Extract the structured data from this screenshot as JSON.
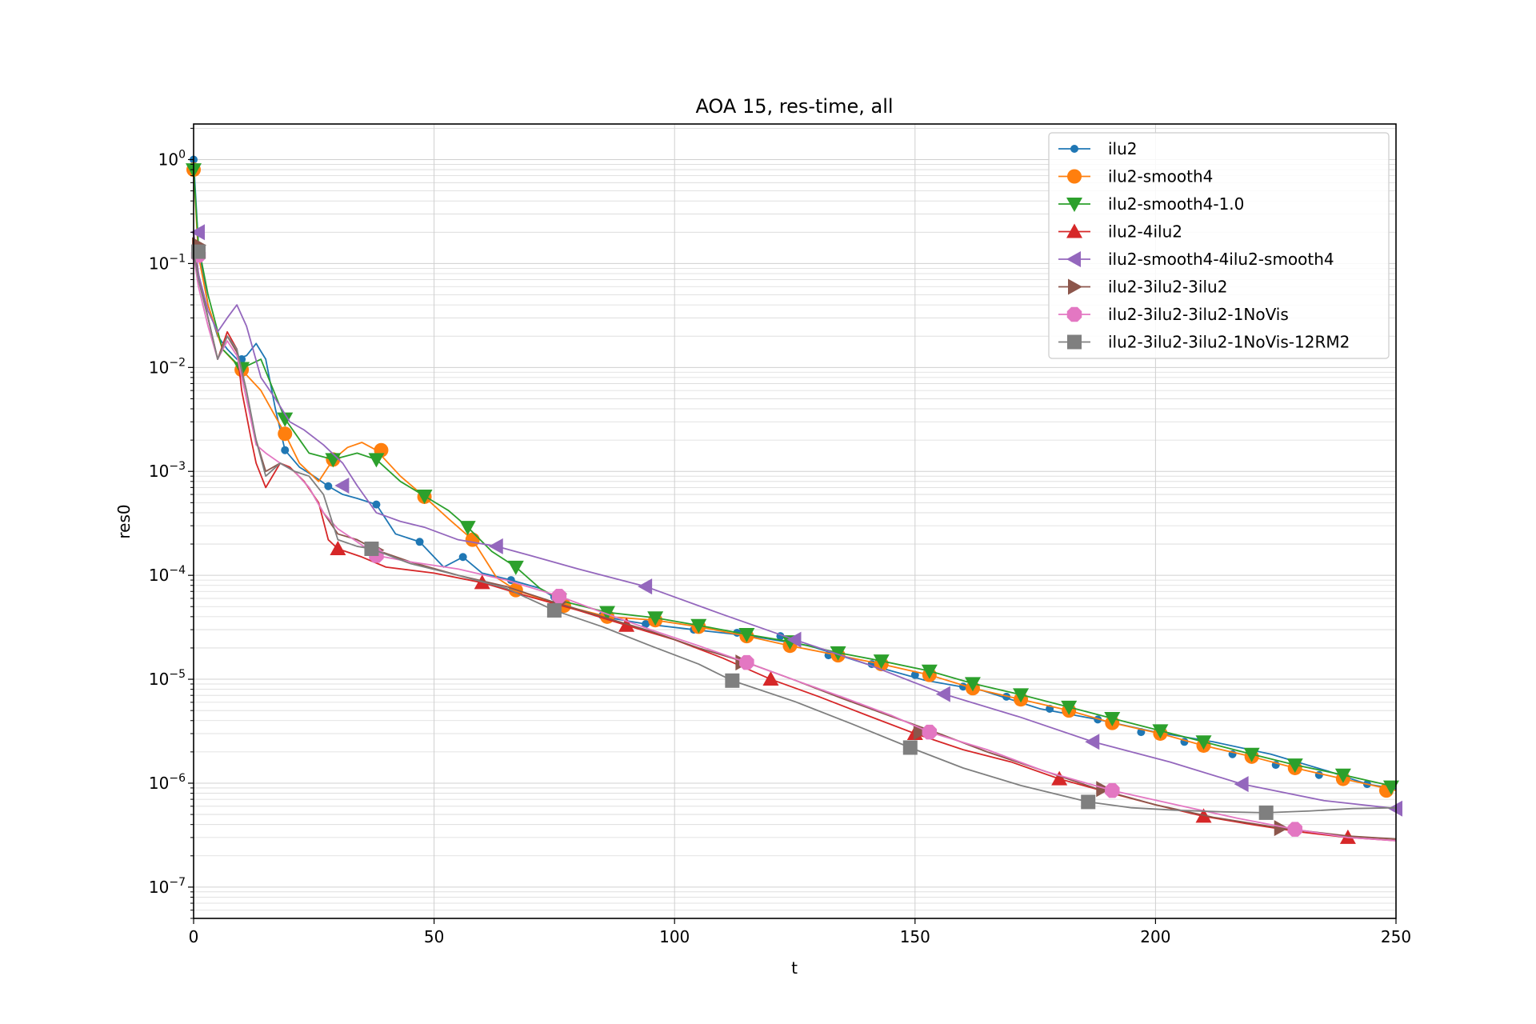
{
  "chart_data": {
    "type": "line",
    "title": "AOA 15, res-time, all",
    "xlabel": "t",
    "ylabel": "res0",
    "xlim": [
      0,
      250
    ],
    "ylim": [
      5e-08,
      2.2
    ],
    "yscale": "log",
    "grid": true,
    "legend_position": "top-right",
    "x_ticks": [
      0,
      50,
      100,
      150,
      200,
      250
    ],
    "x_tick_labels": [
      "0",
      "50",
      "100",
      "150",
      "200",
      "250"
    ],
    "y_ticks": [
      1e-07,
      1e-06,
      1e-05,
      0.0001,
      0.001,
      0.01,
      0.1,
      1
    ],
    "y_tick_labels": [
      {
        "base": "10",
        "exp": "−7"
      },
      {
        "base": "10",
        "exp": "−6"
      },
      {
        "base": "10",
        "exp": "−5"
      },
      {
        "base": "10",
        "exp": "−4"
      },
      {
        "base": "10",
        "exp": "−3"
      },
      {
        "base": "10",
        "exp": "−2"
      },
      {
        "base": "10",
        "exp": "−1"
      },
      {
        "base": "10",
        "exp": "0"
      }
    ],
    "series": [
      {
        "name": "ilu2",
        "color": "#1f77b4",
        "marker": "dot",
        "marker_size": 5,
        "x": [
          0,
          1,
          3,
          5,
          7,
          9,
          11,
          13,
          15,
          17,
          19,
          22,
          25,
          28,
          31,
          34,
          38,
          42,
          47,
          52,
          56,
          60,
          66,
          72,
          78,
          85,
          94,
          104,
          116,
          128,
          140,
          152,
          164,
          176,
          188,
          200,
          212,
          224,
          236,
          244,
          250
        ],
        "y": [
          1.0,
          0.15,
          0.04,
          0.02,
          0.015,
          0.012,
          0.013,
          0.017,
          0.012,
          0.004,
          0.0016,
          0.0011,
          0.0009,
          0.00072,
          0.0006,
          0.00055,
          0.00048,
          0.00025,
          0.00021,
          0.00012,
          0.00015,
          0.000105,
          9e-05,
          7.5e-05,
          5e-05,
          4e-05,
          3.4e-05,
          3e-05,
          2.6e-05,
          2.1e-05,
          1.4e-05,
          9.8e-06,
          7.8e-06,
          5.2e-06,
          4.1e-06,
          3.1e-06,
          2.5e-06,
          1.9e-06,
          1.3e-06,
          9.8e-07,
          8.8e-07
        ],
        "marker_x": [
          0,
          10,
          19,
          28,
          38,
          47,
          56,
          66,
          75,
          85,
          94,
          104,
          113,
          122,
          132,
          141,
          150,
          160,
          169,
          178,
          188,
          197,
          206,
          216,
          225,
          234,
          244
        ],
        "marker_y": [
          1.0,
          0.012,
          0.0016,
          0.00072,
          0.00048,
          0.00021,
          0.00015,
          9e-05,
          6.2e-05,
          4.1e-05,
          3.4e-05,
          3e-05,
          2.8e-05,
          2.6e-05,
          1.7e-05,
          1.4e-05,
          1.1e-05,
          8.5e-06,
          6.8e-06,
          5.2e-06,
          4.1e-06,
          3.1e-06,
          2.5e-06,
          1.9e-06,
          1.5e-06,
          1.2e-06,
          9.8e-07
        ]
      },
      {
        "name": "ilu2-smooth4",
        "color": "#ff7f0e",
        "marker": "circle",
        "marker_size": 9,
        "x": [
          0,
          1,
          3,
          6,
          10,
          14,
          19,
          22,
          26,
          29,
          32,
          35,
          38,
          43,
          48,
          53,
          58,
          63,
          67,
          72,
          77,
          86,
          96,
          105,
          115,
          124,
          134,
          143,
          153,
          162,
          172,
          182,
          191,
          201,
          210,
          220,
          229,
          239,
          250
        ],
        "y": [
          0.8,
          0.12,
          0.04,
          0.015,
          0.0095,
          0.006,
          0.0023,
          0.0012,
          0.0008,
          0.0013,
          0.0017,
          0.0019,
          0.0016,
          0.0009,
          0.00057,
          0.00035,
          0.00022,
          9.5e-05,
          7.2e-05,
          6e-05,
          5.1e-05,
          4e-05,
          3.7e-05,
          3.2e-05,
          2.6e-05,
          2.1e-05,
          1.7e-05,
          1.4e-05,
          1.1e-05,
          8.2e-06,
          6.4e-06,
          5e-06,
          3.8e-06,
          3e-06,
          2.3e-06,
          1.8e-06,
          1.4e-06,
          1.1e-06,
          8.5e-07
        ],
        "marker_x": [
          0,
          10,
          19,
          29,
          39,
          48,
          58,
          67,
          77,
          86,
          96,
          105,
          115,
          124,
          134,
          143,
          153,
          162,
          172,
          182,
          191,
          201,
          210,
          220,
          229,
          239,
          248
        ],
        "marker_y": [
          0.8,
          0.0095,
          0.0023,
          0.0013,
          0.0016,
          0.00057,
          0.00022,
          7.2e-05,
          5.1e-05,
          4e-05,
          3.7e-05,
          3.2e-05,
          2.6e-05,
          2.1e-05,
          1.7e-05,
          1.4e-05,
          1.1e-05,
          8.2e-06,
          6.4e-06,
          5e-06,
          3.8e-06,
          3e-06,
          2.3e-06,
          1.8e-06,
          1.4e-06,
          1.1e-06,
          8.5e-07
        ]
      },
      {
        "name": "ilu2-smooth4-1.0",
        "color": "#2ca02c",
        "marker": "triangle-down",
        "marker_size": 10,
        "x": [
          0,
          1,
          3,
          6,
          10,
          14,
          19,
          24,
          29,
          34,
          38,
          43,
          48,
          53,
          57,
          62,
          67,
          72,
          77,
          86,
          96,
          105,
          115,
          124,
          134,
          143,
          153,
          162,
          172,
          182,
          191,
          201,
          210,
          220,
          229,
          239,
          250
        ],
        "y": [
          0.8,
          0.15,
          0.05,
          0.015,
          0.0098,
          0.012,
          0.0032,
          0.0015,
          0.0013,
          0.0015,
          0.0013,
          0.0008,
          0.00058,
          0.00042,
          0.00029,
          0.00017,
          0.00012,
          7.5e-05,
          5.6e-05,
          4.4e-05,
          3.9e-05,
          3.3e-05,
          2.7e-05,
          2.3e-05,
          1.8e-05,
          1.5e-05,
          1.2e-05,
          9.1e-06,
          7.1e-06,
          5.4e-06,
          4.2e-06,
          3.2e-06,
          2.5e-06,
          1.9e-06,
          1.5e-06,
          1.2e-06,
          9.2e-07
        ],
        "marker_x": [
          0,
          10,
          19,
          29,
          38,
          48,
          57,
          67,
          76,
          86,
          96,
          105,
          115,
          124,
          134,
          143,
          153,
          162,
          172,
          182,
          191,
          201,
          210,
          220,
          229,
          239,
          249
        ],
        "marker_y": [
          0.8,
          0.0098,
          0.0032,
          0.0013,
          0.0013,
          0.00058,
          0.00029,
          0.00012,
          5.8e-05,
          4.4e-05,
          3.9e-05,
          3.3e-05,
          2.7e-05,
          2.3e-05,
          1.8e-05,
          1.5e-05,
          1.2e-05,
          9.1e-06,
          7.1e-06,
          5.4e-06,
          4.2e-06,
          3.2e-06,
          2.5e-06,
          1.9e-06,
          1.5e-06,
          1.2e-06,
          9.2e-07
        ]
      },
      {
        "name": "ilu2-4ilu2",
        "color": "#d62728",
        "marker": "triangle-up",
        "marker_size": 10,
        "x": [
          0,
          1,
          3,
          5,
          7,
          9,
          10,
          12,
          13,
          15,
          18,
          20,
          23,
          26,
          28,
          30,
          35,
          40,
          50,
          60,
          70,
          80,
          90,
          100,
          110,
          120,
          130,
          140,
          150,
          160,
          170,
          180,
          190,
          200,
          210,
          220,
          230,
          240,
          250
        ],
        "y": [
          0.2,
          0.08,
          0.03,
          0.012,
          0.022,
          0.015,
          0.006,
          0.002,
          0.0012,
          0.0007,
          0.0012,
          0.0011,
          0.0008,
          0.0005,
          0.00022,
          0.00018,
          0.00015,
          0.00012,
          0.000105,
          8.5e-05,
          6.2e-05,
          4.6e-05,
          3.3e-05,
          2.4e-05,
          1.6e-05,
          1e-05,
          6.8e-06,
          4.5e-06,
          3e-06,
          2.1e-06,
          1.6e-06,
          1.1e-06,
          8.2e-07,
          6.2e-07,
          4.8e-07,
          4e-07,
          3.4e-07,
          3e-07,
          2.8e-07
        ],
        "marker_x": [
          30,
          60,
          90,
          120,
          150,
          180,
          210,
          240
        ],
        "marker_y": [
          0.00018,
          8.5e-05,
          3.3e-05,
          1e-05,
          3e-06,
          1.1e-06,
          4.8e-07,
          3e-07
        ]
      },
      {
        "name": "ilu2-smooth4-4ilu2-smooth4",
        "color": "#9467bd",
        "marker": "triangle-left",
        "marker_size": 10,
        "x": [
          0,
          1,
          3,
          5,
          7,
          9,
          11,
          14,
          17,
          20,
          23,
          27,
          31,
          34,
          38,
          43,
          48,
          55,
          63,
          70,
          80,
          94,
          110,
          125,
          140,
          156,
          172,
          187,
          203,
          218,
          235,
          250
        ],
        "y": [
          0.2,
          0.08,
          0.035,
          0.022,
          0.03,
          0.04,
          0.025,
          0.008,
          0.005,
          0.003,
          0.0025,
          0.0018,
          0.0012,
          0.00073,
          0.0004,
          0.00033,
          0.00029,
          0.00022,
          0.00019,
          0.000155,
          0.000115,
          7.8e-05,
          4.2e-05,
          2.4e-05,
          1.4e-05,
          7.2e-06,
          4.3e-06,
          2.5e-06,
          1.6e-06,
          9.8e-07,
          6.8e-07,
          5.7e-07
        ],
        "marker_x": [
          1,
          31,
          63,
          94,
          125,
          156,
          187,
          218,
          250
        ],
        "marker_y": [
          0.2,
          0.00073,
          0.00019,
          7.8e-05,
          2.4e-05,
          7.2e-06,
          2.5e-06,
          9.8e-07,
          5.7e-07
        ]
      },
      {
        "name": "ilu2-3ilu2-3ilu2",
        "color": "#8c564b",
        "marker": "triangle-right",
        "marker_size": 10,
        "x": [
          0,
          1,
          3,
          5,
          7,
          9,
          11,
          13,
          15,
          18,
          21,
          24,
          27,
          30,
          34,
          38,
          45,
          55,
          65,
          75,
          85,
          95,
          105,
          115,
          125,
          135,
          145,
          155,
          165,
          175,
          188,
          200,
          212,
          226,
          240,
          250
        ],
        "y": [
          0.15,
          0.07,
          0.03,
          0.012,
          0.02,
          0.014,
          0.005,
          0.002,
          0.001,
          0.0012,
          0.001,
          0.0007,
          0.0004,
          0.00025,
          0.00022,
          0.000175,
          0.000135,
          0.0001,
          7.8e-05,
          5.5e-05,
          4e-05,
          2.9e-05,
          2e-05,
          1.45e-05,
          9.8e-06,
          6.5e-06,
          4.4e-06,
          3e-06,
          2e-06,
          1.4e-06,
          8.8e-07,
          6.2e-07,
          4.7e-07,
          3.7e-07,
          3.1e-07,
          2.9e-07
        ],
        "marker_x": [
          1,
          38,
          76,
          114,
          151,
          189,
          226
        ],
        "marker_y": [
          0.15,
          0.000175,
          5.5e-05,
          1.45e-05,
          3.1e-06,
          8.8e-07,
          3.7e-07
        ]
      },
      {
        "name": "ilu2-3ilu2-3ilu2-1NoVis",
        "color": "#e377c2",
        "marker": "octagon",
        "marker_size": 10,
        "x": [
          0,
          1,
          3,
          5,
          7,
          9,
          11,
          13,
          15,
          18,
          21,
          24,
          27,
          30,
          34,
          38,
          45,
          55,
          65,
          76,
          85,
          95,
          105,
          115,
          125,
          135,
          145,
          153,
          165,
          177,
          191,
          205,
          217,
          229,
          240,
          250
        ],
        "y": [
          0.12,
          0.06,
          0.025,
          0.012,
          0.018,
          0.013,
          0.005,
          0.0018,
          0.0015,
          0.0012,
          0.001,
          0.0007,
          0.0004,
          0.00028,
          0.00021,
          0.000155,
          0.000135,
          0.000115,
          9e-05,
          6.3e-05,
          4.4e-05,
          3e-05,
          2.1e-05,
          1.45e-05,
          9.8e-06,
          6.7e-06,
          4.5e-06,
          3.1e-06,
          2.1e-06,
          1.3e-06,
          8.5e-07,
          6.1e-07,
          4.6e-07,
          3.6e-07,
          3e-07,
          2.8e-07
        ],
        "marker_x": [
          1,
          38,
          76,
          115,
          153,
          191,
          229
        ],
        "marker_y": [
          0.12,
          0.000155,
          6.3e-05,
          1.45e-05,
          3.1e-06,
          8.5e-07,
          3.6e-07
        ]
      },
      {
        "name": "ilu2-3ilu2-3ilu2-1NoVis-12RM2",
        "color": "#7f7f7f",
        "marker": "square",
        "marker_size": 9,
        "x": [
          0,
          1,
          3,
          5,
          7,
          9,
          11,
          13,
          15,
          18,
          21,
          24,
          27,
          30,
          34,
          37,
          45,
          55,
          65,
          75,
          85,
          95,
          105,
          112,
          125,
          137,
          149,
          160,
          172,
          186,
          195,
          204,
          214,
          223,
          232,
          241,
          250
        ],
        "y": [
          0.13,
          0.07,
          0.03,
          0.012,
          0.02,
          0.015,
          0.006,
          0.002,
          0.0009,
          0.0012,
          0.001,
          0.0009,
          0.0006,
          0.00022,
          0.00019,
          0.00018,
          0.00013,
          0.0001,
          7.5e-05,
          4.6e-05,
          3.2e-05,
          2.1e-05,
          1.4e-05,
          9.7e-06,
          6.1e-06,
          3.7e-06,
          2.2e-06,
          1.4e-06,
          9.5e-07,
          6.6e-07,
          5.8e-07,
          5.5e-07,
          5.3e-07,
          5.2e-07,
          5.4e-07,
          5.7e-07,
          5.8e-07
        ],
        "marker_x": [
          1,
          37,
          75,
          112,
          149,
          186,
          223
        ],
        "marker_y": [
          0.13,
          0.00018,
          4.6e-05,
          9.7e-06,
          2.2e-06,
          6.6e-07,
          5.2e-07
        ]
      }
    ]
  }
}
